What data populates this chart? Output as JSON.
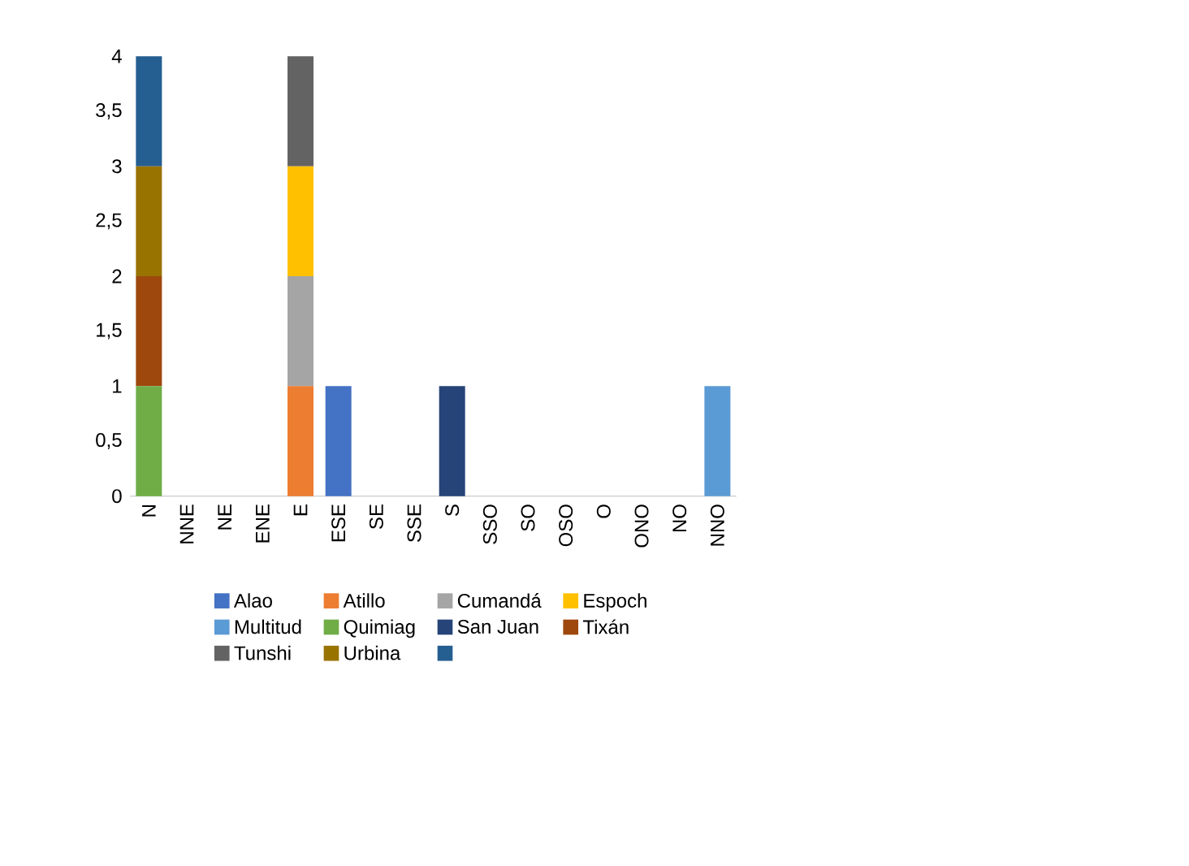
{
  "chart_data": {
    "type": "bar",
    "stacked": true,
    "categories": [
      "N",
      "NNE",
      "NE",
      "ENE",
      "E",
      "ESE",
      "SE",
      "SSE",
      "S",
      "SSO",
      "SO",
      "OSO",
      "O",
      "ONO",
      "NO",
      "NNO"
    ],
    "series": [
      {
        "name": "Alao",
        "color": "#4472c4",
        "values": [
          0,
          0,
          0,
          0,
          0,
          1,
          0,
          0,
          0,
          0,
          0,
          0,
          0,
          0,
          0,
          0
        ]
      },
      {
        "name": "Atillo",
        "color": "#ed7d31",
        "values": [
          0,
          0,
          0,
          0,
          1,
          0,
          0,
          0,
          0,
          0,
          0,
          0,
          0,
          0,
          0,
          0
        ]
      },
      {
        "name": "Cumandá",
        "color": "#a5a5a5",
        "values": [
          0,
          0,
          0,
          0,
          1,
          0,
          0,
          0,
          0,
          0,
          0,
          0,
          0,
          0,
          0,
          0
        ]
      },
      {
        "name": "Espoch",
        "color": "#ffc000",
        "values": [
          0,
          0,
          0,
          0,
          1,
          0,
          0,
          0,
          0,
          0,
          0,
          0,
          0,
          0,
          0,
          0
        ]
      },
      {
        "name": "Multitud",
        "color": "#5b9bd5",
        "values": [
          0,
          0,
          0,
          0,
          0,
          0,
          0,
          0,
          0,
          0,
          0,
          0,
          0,
          0,
          0,
          1
        ]
      },
      {
        "name": "Quimiag",
        "color": "#70ad47",
        "values": [
          1,
          0,
          0,
          0,
          0,
          0,
          0,
          0,
          0,
          0,
          0,
          0,
          0,
          0,
          0,
          0
        ]
      },
      {
        "name": "San Juan",
        "color": "#264478",
        "values": [
          0,
          0,
          0,
          0,
          0,
          0,
          0,
          0,
          1,
          0,
          0,
          0,
          0,
          0,
          0,
          0
        ]
      },
      {
        "name": "Tixán",
        "color": "#9e480e",
        "values": [
          1,
          0,
          0,
          0,
          0,
          0,
          0,
          0,
          0,
          0,
          0,
          0,
          0,
          0,
          0,
          0
        ]
      },
      {
        "name": "Tunshi",
        "color": "#636363",
        "values": [
          0,
          0,
          0,
          0,
          1,
          0,
          0,
          0,
          0,
          0,
          0,
          0,
          0,
          0,
          0,
          0
        ]
      },
      {
        "name": "Urbina",
        "color": "#997300",
        "values": [
          1,
          0,
          0,
          0,
          0,
          0,
          0,
          0,
          0,
          0,
          0,
          0,
          0,
          0,
          0,
          0
        ]
      },
      {
        "color": "#255e91",
        "values": [
          1,
          0,
          0,
          0,
          0,
          0,
          0,
          0,
          0,
          0,
          0,
          0,
          0,
          0,
          0,
          0
        ]
      }
    ],
    "ylim": [
      0,
      4
    ],
    "yticks": [
      0,
      {
        "value": 0.5,
        "label": "0,5"
      },
      1,
      {
        "value": 1.5,
        "label": "1,5"
      },
      2,
      {
        "value": 2.5,
        "label": "2,5"
      },
      3,
      {
        "value": 3.5,
        "label": "3,5"
      },
      4
    ],
    "grid": false,
    "legend": "bottom"
  }
}
